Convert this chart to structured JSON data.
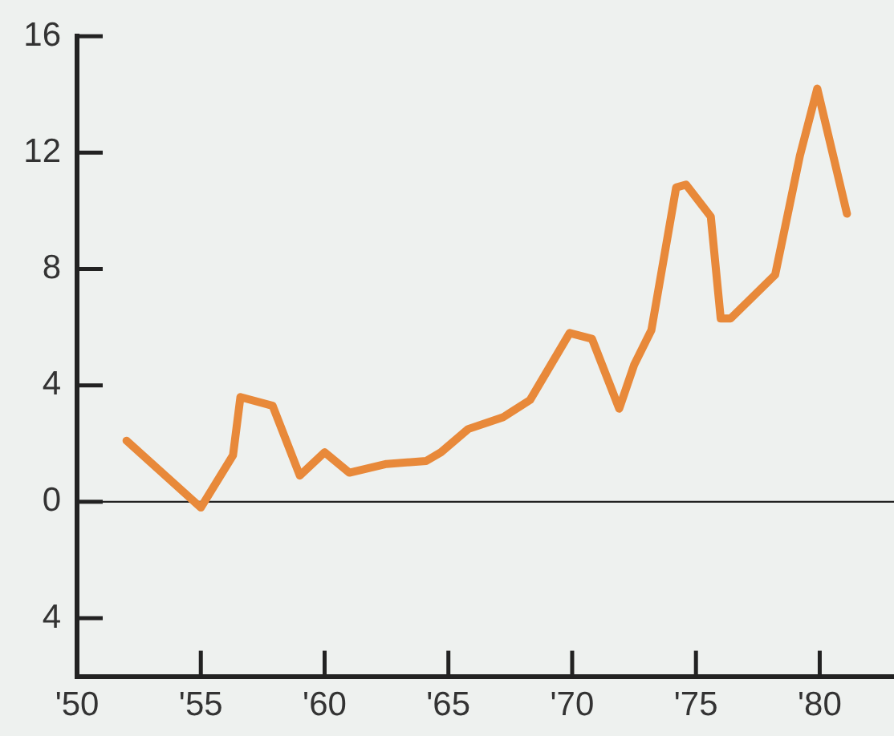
{
  "chart_data": {
    "type": "line",
    "x": [
      1952,
      1955,
      1956.3,
      1956.6,
      1957.9,
      1959,
      1960,
      1961,
      1962.5,
      1964.1,
      1964.7,
      1965.8,
      1967.2,
      1968.3,
      1969.9,
      1970.8,
      1971.9,
      1972.5,
      1973.2,
      1974.2,
      1974.6,
      1975.6,
      1976,
      1976.4,
      1978.2,
      1979.2,
      1979.9,
      1981.1
    ],
    "series": [
      {
        "color": "#e8893a",
        "values": [
          2.1,
          -0.2,
          1.6,
          3.6,
          3.3,
          0.9,
          1.7,
          1.0,
          1.3,
          1.4,
          1.7,
          2.5,
          2.9,
          3.5,
          5.8,
          5.6,
          3.2,
          4.7,
          5.9,
          10.8,
          10.9,
          9.8,
          6.3,
          6.3,
          7.8,
          11.9,
          14.2,
          9.9
        ]
      }
    ],
    "xlim": [
      1950,
      1983
    ],
    "xticks": [
      {
        "value": 1950,
        "label": "'50"
      },
      {
        "value": 1955,
        "label": "'55"
      },
      {
        "value": 1960,
        "label": "'60"
      },
      {
        "value": 1965,
        "label": "'65"
      },
      {
        "value": 1970,
        "label": "'70"
      },
      {
        "value": 1975,
        "label": "'75"
      },
      {
        "value": 1980,
        "label": "'80"
      }
    ],
    "ylim": [
      -6,
      16
    ],
    "yticks": [
      16,
      12,
      8,
      4,
      0,
      {
        "value": -4,
        "label": "4"
      }
    ],
    "ref_lines": [
      {
        "axis": "y",
        "value": 0,
        "color": "#222222"
      }
    ],
    "grid": false,
    "legend": false,
    "marker": "none",
    "line_style": "solid"
  }
}
